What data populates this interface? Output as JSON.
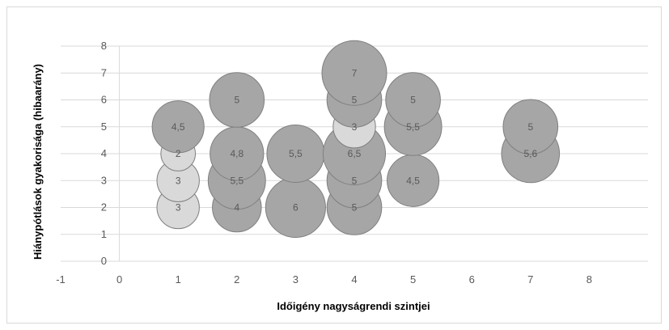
{
  "chart_data": {
    "type": "bubble",
    "title": "",
    "xlabel": "Időigény nagyságrendi szintjei",
    "ylabel": "Hiánypótlások gyakorisága (hibaarány)",
    "xlim": [
      -1,
      9
    ],
    "ylim": [
      0,
      8
    ],
    "x_ticks": [
      "-1",
      "0",
      "1",
      "2",
      "3",
      "4",
      "5",
      "6",
      "7",
      "8"
    ],
    "y_ticks": [
      "0",
      "1",
      "2",
      "3",
      "4",
      "5",
      "6",
      "7",
      "8"
    ],
    "grid": "horizontal",
    "legend": "none",
    "colors": {
      "dark": "#a6a6a6",
      "light": "#d9d9d9",
      "stroke": "#7f7f7f",
      "grid": "#d9d9d9"
    },
    "points": [
      {
        "x": 1,
        "y": 2,
        "size": 3,
        "label": "3",
        "shade": "light"
      },
      {
        "x": 1,
        "y": 3,
        "size": 3,
        "label": "3",
        "shade": "light"
      },
      {
        "x": 1,
        "y": 4,
        "size": 2,
        "label": "2",
        "shade": "light"
      },
      {
        "x": 1,
        "y": 5,
        "size": 4.5,
        "label": "4,5",
        "shade": "dark"
      },
      {
        "x": 2,
        "y": 2,
        "size": 4,
        "label": "4",
        "shade": "dark"
      },
      {
        "x": 2,
        "y": 3,
        "size": 5.5,
        "label": "5,5",
        "shade": "dark"
      },
      {
        "x": 2,
        "y": 4,
        "size": 4.8,
        "label": "4,8",
        "shade": "dark"
      },
      {
        "x": 2,
        "y": 6,
        "size": 5,
        "label": "5",
        "shade": "dark"
      },
      {
        "x": 3,
        "y": 2,
        "size": 6,
        "label": "6",
        "shade": "dark"
      },
      {
        "x": 3,
        "y": 4,
        "size": 5.5,
        "label": "5,5",
        "shade": "dark"
      },
      {
        "x": 4,
        "y": 2,
        "size": 5,
        "label": "5",
        "shade": "dark"
      },
      {
        "x": 4,
        "y": 3,
        "size": 5,
        "label": "5",
        "shade": "dark"
      },
      {
        "x": 4,
        "y": 4,
        "size": 6.5,
        "label": "6,5",
        "shade": "dark"
      },
      {
        "x": 4,
        "y": 5,
        "size": 3,
        "label": "3",
        "shade": "light"
      },
      {
        "x": 4,
        "y": 6,
        "size": 5,
        "label": "5",
        "shade": "dark"
      },
      {
        "x": 4,
        "y": 7,
        "size": 7,
        "label": "7",
        "shade": "dark"
      },
      {
        "x": 5,
        "y": 3,
        "size": 4.5,
        "label": "4,5",
        "shade": "dark"
      },
      {
        "x": 5,
        "y": 5,
        "size": 5.5,
        "label": "5,5",
        "shade": "dark"
      },
      {
        "x": 5,
        "y": 6,
        "size": 5,
        "label": "5",
        "shade": "dark"
      },
      {
        "x": 7,
        "y": 4,
        "size": 5.6,
        "label": "5,6",
        "shade": "dark"
      },
      {
        "x": 7,
        "y": 5,
        "size": 5,
        "label": "5",
        "shade": "dark"
      }
    ]
  }
}
